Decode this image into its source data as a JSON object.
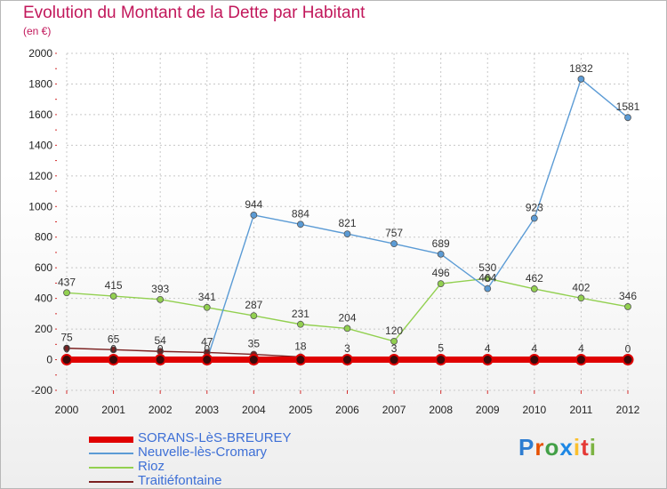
{
  "header": {
    "title": "Evolution du Montant de la Dette par Habitant",
    "unit": "(en €)"
  },
  "logo": {
    "text": "Proxiti"
  },
  "colors": {
    "title": "#c2185b",
    "grid": "#c8c8c8",
    "legend_text": "#3d6fd6"
  },
  "chart_data": {
    "type": "line",
    "title": "Evolution du Montant de la Dette par Habitant",
    "subtitle": "(en €)",
    "xlabel": "",
    "ylabel": "",
    "x": [
      2000,
      2001,
      2002,
      2003,
      2004,
      2005,
      2006,
      2007,
      2008,
      2009,
      2010,
      2011,
      2012
    ],
    "ylim": [
      -200,
      2000
    ],
    "yticks": [
      -200,
      0,
      200,
      400,
      600,
      800,
      1000,
      1200,
      1400,
      1600,
      1800,
      2000
    ],
    "grid": true,
    "legend_position": "bottom-left",
    "series": [
      {
        "name": "SORANS-LèS-BREUREY",
        "color": "#e00000",
        "values": [
          0,
          0,
          0,
          0,
          0,
          0,
          0,
          0,
          0,
          0,
          0,
          0,
          0
        ],
        "labels": []
      },
      {
        "name": "Neuvelle-lès-Cromary",
        "color": "#5b9bd5",
        "values": [
          0,
          0,
          0,
          0,
          944,
          884,
          821,
          757,
          689,
          464,
          923,
          1832,
          1581
        ],
        "labels": [
          "0",
          "0",
          "0",
          "0",
          "944",
          "884",
          "821",
          "757",
          "689",
          "464",
          "923",
          "1832",
          "1581"
        ]
      },
      {
        "name": "Rioz",
        "color": "#92d050",
        "values": [
          437,
          415,
          393,
          341,
          287,
          231,
          204,
          120,
          496,
          530,
          462,
          402,
          346
        ],
        "labels": [
          "437",
          "415",
          "393",
          "341",
          "287",
          "231",
          "204",
          "120",
          "496",
          "530",
          "462",
          "402",
          "346"
        ]
      },
      {
        "name": "Traitiéfontaine",
        "color": "#7b2020",
        "values": [
          75,
          65,
          54,
          47,
          35,
          18,
          3,
          3,
          5,
          4,
          4,
          4,
          0
        ],
        "labels": [
          "75",
          "65",
          "54",
          "47",
          "35",
          "18",
          "3",
          "3",
          "5",
          "4",
          "4",
          "4",
          "0"
        ]
      }
    ]
  }
}
